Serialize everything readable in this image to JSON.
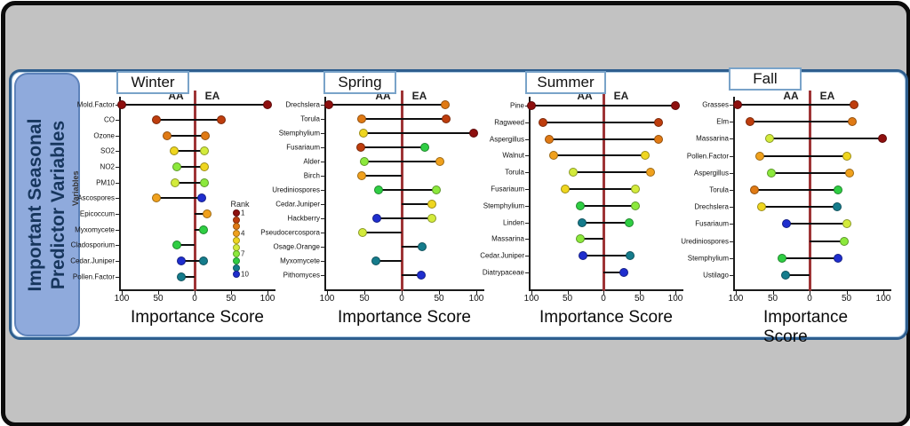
{
  "figure_title": "Important Seasonal Predictor Variables",
  "sidebar": {
    "line1": "Important Seasonal",
    "line2": "Predictor Variables"
  },
  "axes": {
    "xlabel": "Importance Score",
    "ylabel": "Variables",
    "tick_labels": [
      "100",
      "50",
      "0",
      "50",
      "100"
    ],
    "group_left": "AA",
    "group_right": "EA"
  },
  "legend": {
    "title": "Rank",
    "tick_ranks": [
      1,
      4,
      7,
      10
    ]
  },
  "palette": {
    "rank_colors": [
      "#8e0f0e",
      "#be3d0d",
      "#e07a14",
      "#f0a11d",
      "#efd61f",
      "#d3eb3b",
      "#8ce93c",
      "#2fce43",
      "#157c8c",
      "#1f2ece"
    ],
    "zero_line": "#9e3436",
    "connector": "#0e0e0e",
    "sidebar_fill": "#8faadc",
    "sidebar_text": "#17365d",
    "panel_border": "#2e5e8e",
    "title_box_border": "#79a3c9",
    "frame_bg": "#c2c2c2"
  },
  "chart_data": [
    {
      "type": "dumbbell",
      "season": "Winter",
      "x_range": [
        -100,
        100
      ],
      "groups": [
        "AA",
        "EA"
      ],
      "variables": [
        {
          "name": "Mold.Factor",
          "aa": 100,
          "aa_rank": 1,
          "ea": 100,
          "ea_rank": 1
        },
        {
          "name": "CO",
          "aa": 52,
          "aa_rank": 2,
          "ea": 37,
          "ea_rank": 2
        },
        {
          "name": "Ozone",
          "aa": 38,
          "aa_rank": 3,
          "ea": 15,
          "ea_rank": 3
        },
        {
          "name": "SO2",
          "aa": 28,
          "aa_rank": 5,
          "ea": 13,
          "ea_rank": 6
        },
        {
          "name": "NO2",
          "aa": 25,
          "aa_rank": 7,
          "ea": 13,
          "ea_rank": 5
        },
        {
          "name": "PM10",
          "aa": 27,
          "aa_rank": 6,
          "ea": 14,
          "ea_rank": 7
        },
        {
          "name": "Ascospores",
          "aa": 52,
          "aa_rank": 4,
          "ea": 10,
          "ea_rank": 10
        },
        {
          "name": "Epicoccum",
          "aa": null,
          "aa_rank": null,
          "ea": 17,
          "ea_rank": 4
        },
        {
          "name": "Myxomycete",
          "aa": null,
          "aa_rank": null,
          "ea": 12,
          "ea_rank": 8
        },
        {
          "name": "Cladosporium",
          "aa": 25,
          "aa_rank": 8,
          "ea": null,
          "ea_rank": null
        },
        {
          "name": "Cedar.Juniper",
          "aa": 18,
          "aa_rank": 10,
          "ea": 12,
          "ea_rank": 9
        },
        {
          "name": "Pollen.Factor",
          "aa": 18,
          "aa_rank": 9,
          "ea": null,
          "ea_rank": null
        }
      ]
    },
    {
      "type": "dumbbell",
      "season": "Spring",
      "x_range": [
        -100,
        100
      ],
      "groups": [
        "AA",
        "EA"
      ],
      "variables": [
        {
          "name": "Drechslera",
          "aa": 98,
          "aa_rank": 1,
          "ea": 58,
          "ea_rank": 3
        },
        {
          "name": "Torula",
          "aa": 53,
          "aa_rank": 3,
          "ea": 60,
          "ea_rank": 2
        },
        {
          "name": "Stemphylium",
          "aa": 51,
          "aa_rank": 5,
          "ea": 97,
          "ea_rank": 1
        },
        {
          "name": "Fusariaum",
          "aa": 55,
          "aa_rank": 2,
          "ea": 31,
          "ea_rank": 8
        },
        {
          "name": "Alder",
          "aa": 50,
          "aa_rank": 7,
          "ea": 51,
          "ea_rank": 4
        },
        {
          "name": "Birch",
          "aa": 53,
          "aa_rank": 4,
          "ea": null,
          "ea_rank": null
        },
        {
          "name": "Urediniospores",
          "aa": 31,
          "aa_rank": 8,
          "ea": 46,
          "ea_rank": 7
        },
        {
          "name": "Cedar.Juniper",
          "aa": null,
          "aa_rank": null,
          "ea": 41,
          "ea_rank": 5
        },
        {
          "name": "Hackberry",
          "aa": 33,
          "aa_rank": 10,
          "ea": 40,
          "ea_rank": 6
        },
        {
          "name": "Pseudocercospora",
          "aa": 52,
          "aa_rank": 6,
          "ea": null,
          "ea_rank": null
        },
        {
          "name": "Osage.Orange",
          "aa": null,
          "aa_rank": null,
          "ea": 27,
          "ea_rank": 9
        },
        {
          "name": "Myxomycete",
          "aa": 34,
          "aa_rank": 9,
          "ea": null,
          "ea_rank": null
        },
        {
          "name": "Pithomyces",
          "aa": null,
          "aa_rank": null,
          "ea": 26,
          "ea_rank": 10
        }
      ]
    },
    {
      "type": "dumbbell",
      "season": "Summer",
      "x_range": [
        -100,
        100
      ],
      "groups": [
        "AA",
        "EA"
      ],
      "variables": [
        {
          "name": "Pine",
          "aa": 100,
          "aa_rank": 1,
          "ea": 100,
          "ea_rank": 1
        },
        {
          "name": "Ragweed",
          "aa": 84,
          "aa_rank": 2,
          "ea": 77,
          "ea_rank": 2
        },
        {
          "name": "Aspergillus",
          "aa": 75,
          "aa_rank": 3,
          "ea": 76,
          "ea_rank": 3
        },
        {
          "name": "Walnut",
          "aa": 69,
          "aa_rank": 4,
          "ea": 58,
          "ea_rank": 5
        },
        {
          "name": "Torula",
          "aa": 42,
          "aa_rank": 6,
          "ea": 65,
          "ea_rank": 4
        },
        {
          "name": "Fusariaum",
          "aa": 53,
          "aa_rank": 5,
          "ea": 44,
          "ea_rank": 6
        },
        {
          "name": "Stemphylium",
          "aa": 32,
          "aa_rank": 8,
          "ea": 44,
          "ea_rank": 7
        },
        {
          "name": "Linden",
          "aa": 30,
          "aa_rank": 9,
          "ea": 36,
          "ea_rank": 8
        },
        {
          "name": "Massarina",
          "aa": 32,
          "aa_rank": 7,
          "ea": null,
          "ea_rank": null
        },
        {
          "name": "Cedar.Juniper",
          "aa": 29,
          "aa_rank": 10,
          "ea": 37,
          "ea_rank": 9
        },
        {
          "name": "Diatrypaceae",
          "aa": null,
          "aa_rank": null,
          "ea": 29,
          "ea_rank": 10
        }
      ]
    },
    {
      "type": "dumbbell",
      "season": "Fall",
      "x_range": [
        -100,
        100
      ],
      "groups": [
        "AA",
        "EA"
      ],
      "variables": [
        {
          "name": "Grasses",
          "aa": 98,
          "aa_rank": 1,
          "ea": 60,
          "ea_rank": 2
        },
        {
          "name": "Elm",
          "aa": 81,
          "aa_rank": 2,
          "ea": 58,
          "ea_rank": 3
        },
        {
          "name": "Massarina",
          "aa": 54,
          "aa_rank": 6,
          "ea": 99,
          "ea_rank": 1
        },
        {
          "name": "Pollen.Factor",
          "aa": 68,
          "aa_rank": 4,
          "ea": 51,
          "ea_rank": 5
        },
        {
          "name": "Aspergillus",
          "aa": 52,
          "aa_rank": 7,
          "ea": 54,
          "ea_rank": 4
        },
        {
          "name": "Torula",
          "aa": 75,
          "aa_rank": 3,
          "ea": 38,
          "ea_rank": 8
        },
        {
          "name": "Drechslera",
          "aa": 65,
          "aa_rank": 5,
          "ea": 37,
          "ea_rank": 9
        },
        {
          "name": "Fusariaum",
          "aa": 31,
          "aa_rank": 10,
          "ea": 51,
          "ea_rank": 6
        },
        {
          "name": "Urediniospores",
          "aa": null,
          "aa_rank": null,
          "ea": 47,
          "ea_rank": 7
        },
        {
          "name": "Stemphylium",
          "aa": 37,
          "aa_rank": 8,
          "ea": 38,
          "ea_rank": 10
        },
        {
          "name": "Ustilago",
          "aa": 33,
          "aa_rank": 9,
          "ea": null,
          "ea_rank": null
        }
      ]
    }
  ]
}
